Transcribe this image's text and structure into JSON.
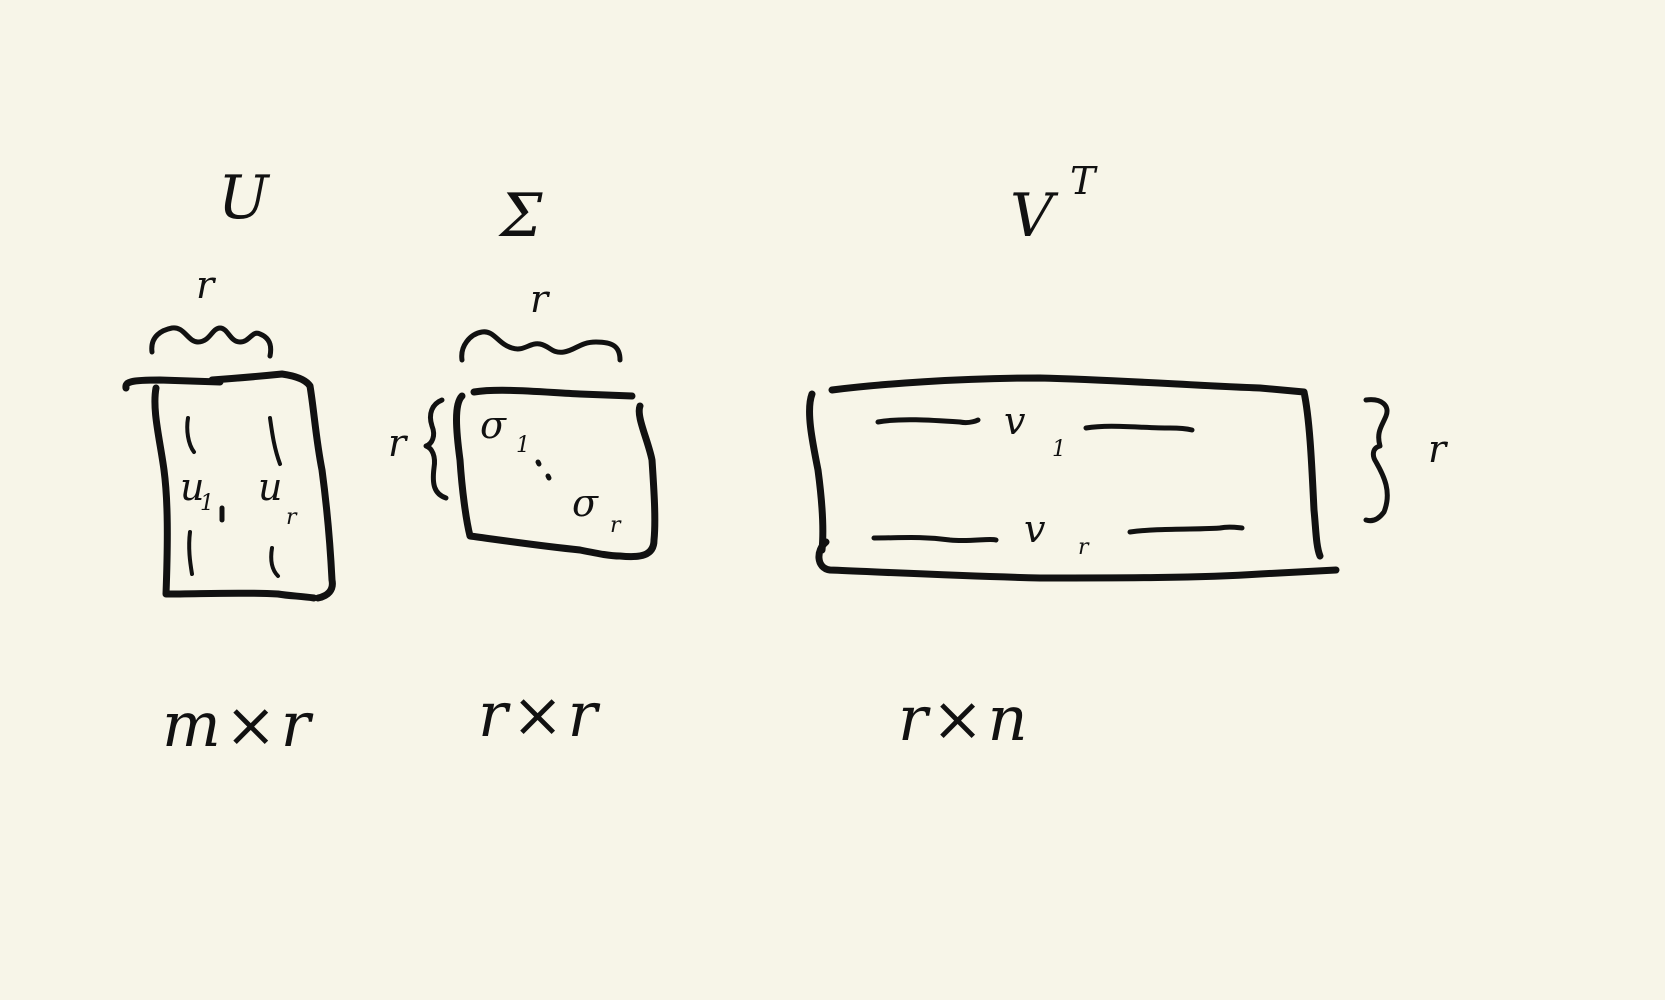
{
  "matrices": [
    {
      "id": "u",
      "label": "U",
      "top_brace_label": "r",
      "columns": [
        {
          "symbol": "u",
          "subscript": "1"
        },
        {
          "symbol": "u",
          "subscript": "r"
        }
      ],
      "dimensions": "m×r"
    },
    {
      "id": "sigma",
      "label": "Σ",
      "top_brace_label": "r",
      "left_brace_label": "r",
      "diagonal": [
        {
          "symbol": "σ",
          "subscript": "1"
        },
        {
          "symbol": "σ",
          "subscript": "r"
        }
      ],
      "dimensions": "r×r"
    },
    {
      "id": "vt",
      "label": "V",
      "label_superscript": "T",
      "right_brace_label": "r",
      "rows": [
        {
          "symbol": "v",
          "subscript": "1"
        },
        {
          "symbol": "v",
          "subscript": "r"
        }
      ],
      "dimensions": "r×n"
    }
  ],
  "colors": {
    "background": "#f7f5e8",
    "ink": "#111111"
  }
}
